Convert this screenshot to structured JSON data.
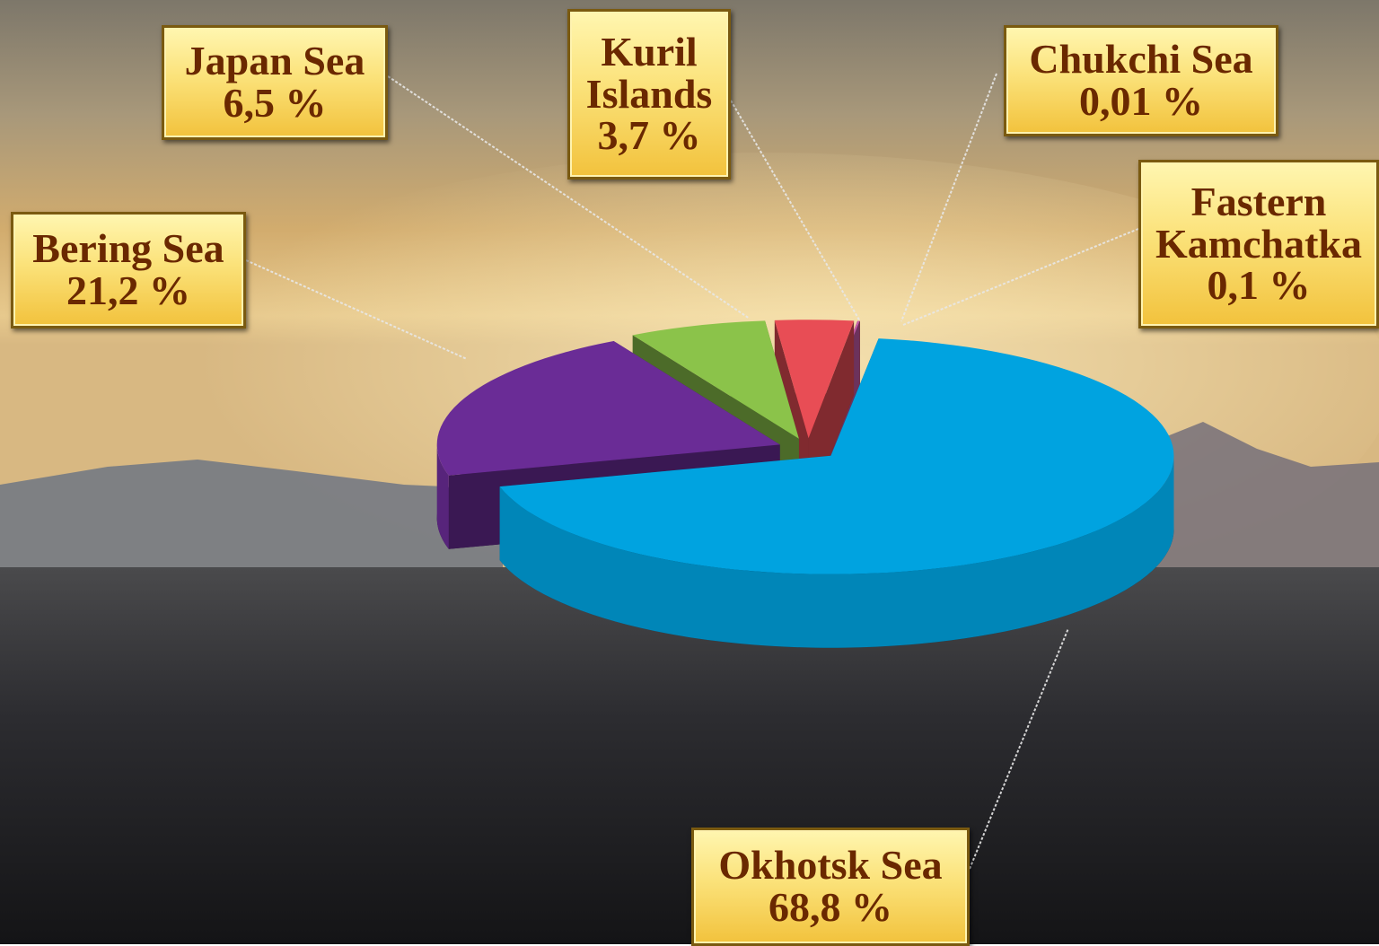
{
  "chart_data": {
    "type": "pie",
    "categories": [
      "Okhotsk Sea",
      "Bering Sea",
      "Japan Sea",
      "Kuril Islands",
      "Fastern Kamchatka",
      "Chukchi Sea"
    ],
    "values": [
      68.8,
      21.2,
      6.5,
      3.7,
      0.1,
      0.01
    ],
    "value_labels": [
      "68,8 %",
      "21,2 %",
      "6,5 %",
      "3,7 %",
      "0,1 %",
      "0,01 %"
    ],
    "colors": [
      "#00a3e0",
      "#6a2c96",
      "#8bc34a",
      "#e84d55",
      "#c45aa8",
      "#b02030"
    ]
  }
}
